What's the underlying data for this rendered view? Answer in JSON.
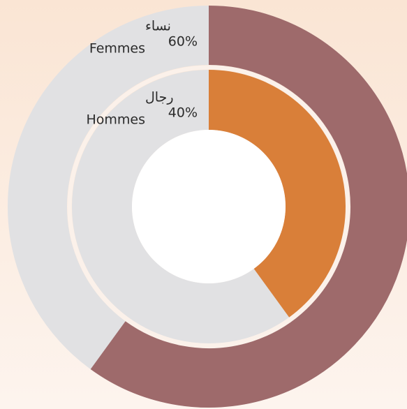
{
  "chart_data": {
    "type": "radial",
    "ylim": [
      0,
      100
    ],
    "track_color": "#e1e1e3",
    "series": [
      {
        "name": "Femmes",
        "label": "نساء",
        "values": [
          60
        ],
        "value_labels": [
          "60%"
        ],
        "color": "#9e6a6b"
      },
      {
        "name": "Hommes",
        "label": "رجال",
        "values": [
          40
        ],
        "value_labels": [
          "40%"
        ],
        "color": "#d97f39"
      }
    ]
  }
}
